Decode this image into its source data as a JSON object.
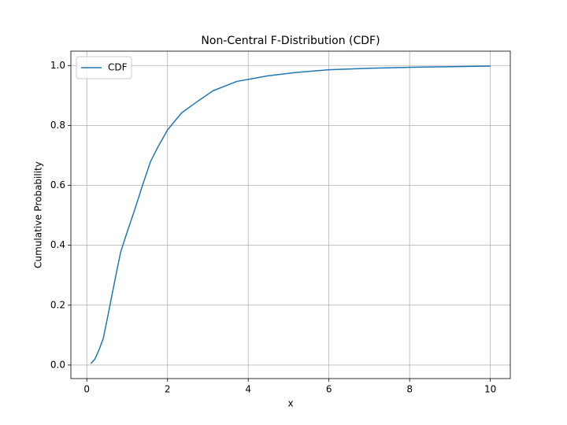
{
  "chart_data": {
    "type": "line",
    "title": "Non-Central F-Distribution (CDF)",
    "xlabel": "x",
    "ylabel": "Cumulative Probability",
    "x": [
      0.1,
      0.2,
      0.3,
      0.41,
      0.545,
      0.7,
      0.84,
      0.99,
      1.19,
      1.38,
      1.58,
      1.77,
      2.0,
      2.35,
      2.74,
      3.13,
      3.72,
      4.5,
      5.2,
      6.0,
      7.0,
      8.0,
      9.0,
      10.0
    ],
    "series": [
      {
        "name": "CDF",
        "color": "#1f77b4",
        "values": [
          0.005,
          0.02,
          0.05,
          0.09,
          0.18,
          0.286,
          0.378,
          0.44,
          0.52,
          0.6,
          0.68,
          0.73,
          0.785,
          0.842,
          0.88,
          0.916,
          0.947,
          0.966,
          0.977,
          0.986,
          0.991,
          0.994,
          0.996,
          0.998
        ]
      }
    ],
    "xlim": [
      -0.395,
      10.495
    ],
    "ylim": [
      -0.045,
      1.048
    ],
    "xticks": [
      0,
      2,
      4,
      6,
      8,
      10
    ],
    "yticks": [
      {
        "value": 0,
        "label": "0.0"
      },
      0.2,
      0.4,
      0.6,
      0.8,
      {
        "value": 1,
        "label": "1.0"
      }
    ],
    "grid": true,
    "legend": "upper-left"
  }
}
